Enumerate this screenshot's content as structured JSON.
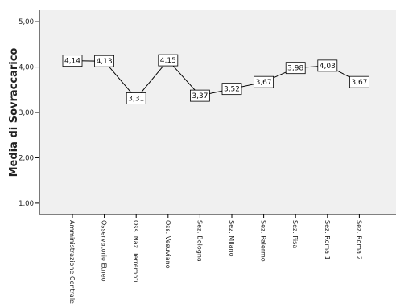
{
  "chart_data": {
    "type": "line",
    "title": "",
    "xlabel": "",
    "ylabel": "Media di Sovraccarico",
    "ylim": [
      0.75,
      5.25
    ],
    "yticks": [
      "1,00",
      "2,00",
      "3,00",
      "4,00",
      "5,00"
    ],
    "ytick_values": [
      1,
      2,
      3,
      4,
      5
    ],
    "grid": false,
    "categories": [
      "Amministrazione Centrale",
      "Osservatorio Etneo",
      "Oss. Naz. Terremoti",
      "Oss. Vesuviano",
      "Sez. Bologna",
      "Sez. Milano",
      "Sez. Palermo",
      "Sez. Pisa",
      "Sez. Roma 1",
      "Sez. Roma 2"
    ],
    "values": [
      4.14,
      4.13,
      3.31,
      4.15,
      3.37,
      3.52,
      3.67,
      3.98,
      4.03,
      3.67
    ],
    "value_labels": [
      "4,14",
      "4,13",
      "3,31",
      "4,15",
      "3,37",
      "3,52",
      "3,67",
      "3,98",
      "4,03",
      "3,67"
    ],
    "colors": {
      "plot_background": "#f0f0f0",
      "line": "#000000",
      "label_box": "#ffffff"
    }
  }
}
